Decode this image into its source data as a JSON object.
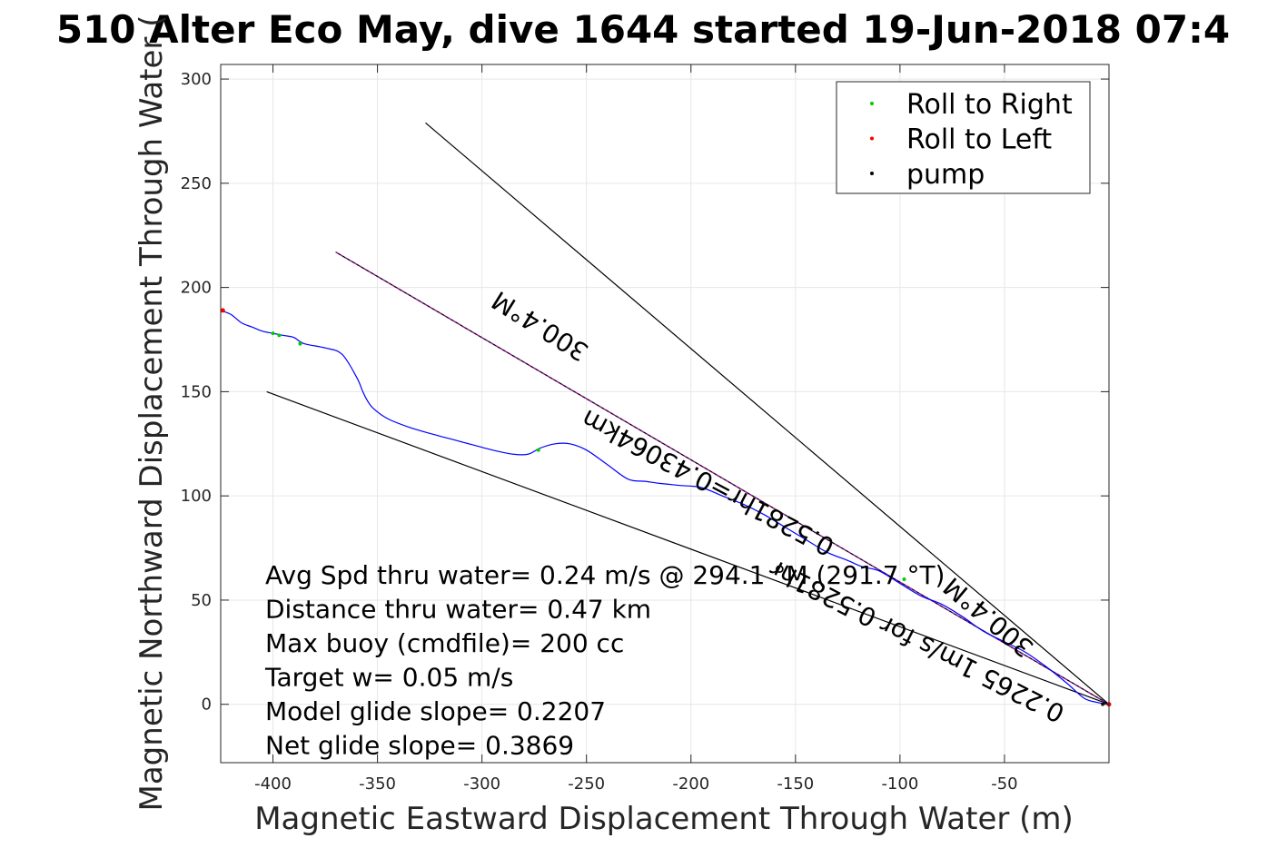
{
  "chart_data": {
    "type": "line",
    "title": "510 Alter Eco May, dive 1644 started 19-Jun-2018 07:4",
    "xlabel": "Magnetic Eastward Displacement Through Water (m)",
    "ylabel": "Magnetic Northward Displacement Through Water (",
    "xlim": [
      -425,
      0
    ],
    "ylim": [
      -28,
      307
    ],
    "x_ticks": [
      -400,
      -350,
      -300,
      -250,
      -200,
      -150,
      -100,
      -50
    ],
    "y_ticks": [
      0,
      50,
      100,
      150,
      200,
      250,
      300
    ],
    "grid": true,
    "legend": {
      "position": "top-right",
      "entries": [
        {
          "label": "Roll to Right",
          "color": "#00cc00"
        },
        {
          "label": "Roll to Left",
          "color": "#ff0000"
        },
        {
          "label": "pump",
          "color": "#000000"
        }
      ]
    },
    "colors": {
      "track": "#0000ff",
      "course": "#cc00cc",
      "guide": "#000000"
    },
    "track": {
      "x": [
        -425,
        -420,
        -415,
        -410,
        -405,
        -400,
        -395,
        -390,
        -385,
        -375,
        -367,
        -360,
        -357,
        -355,
        -352,
        -345,
        -335,
        -325,
        -310,
        -295,
        -285,
        -278,
        -272,
        -265,
        -258,
        -250,
        -240,
        -230,
        -222,
        -215,
        -205,
        -195,
        -185,
        -175,
        -165,
        -155,
        -145,
        -135,
        -125,
        -118,
        -110,
        -100,
        -90,
        -80,
        -70,
        -60,
        -50,
        -40,
        -30,
        -20,
        -12,
        -6,
        0
      ],
      "y": [
        189,
        187,
        183,
        181,
        179,
        178,
        177,
        176,
        173,
        171,
        168,
        157,
        150,
        146,
        142,
        137,
        133,
        130,
        126,
        122,
        120,
        120,
        123,
        125,
        125,
        122,
        115,
        108,
        107,
        106,
        105,
        104,
        100,
        96,
        91,
        85,
        79,
        73,
        69,
        66,
        64,
        58,
        52,
        48,
        42,
        35,
        30,
        25,
        18,
        10,
        3,
        1,
        0
      ]
    },
    "roll_to_right_points": [
      {
        "x": -400,
        "y": 178
      },
      {
        "x": -397,
        "y": 177
      },
      {
        "x": -387,
        "y": 173
      },
      {
        "x": -273,
        "y": 122
      },
      {
        "x": -98,
        "y": 60
      }
    ],
    "roll_to_left_points": [
      {
        "x": -424,
        "y": 189
      },
      {
        "x": 0,
        "y": 0
      }
    ],
    "pump_points": [
      {
        "x": -3,
        "y": 0
      }
    ],
    "lines": [
      {
        "name": "course",
        "x": [
          -370,
          0
        ],
        "y": [
          217,
          0
        ]
      },
      {
        "name": "guide-upper",
        "x": [
          -327,
          0
        ],
        "y": [
          279,
          0
        ]
      },
      {
        "name": "guide-lower",
        "x": [
          -403,
          0
        ],
        "y": [
          150,
          0
        ]
      }
    ],
    "line_labels": [
      {
        "text": "300.4°M",
        "x": -270,
        "y": 185,
        "angle": 212
      },
      {
        "text": "0.5281hr=0.43064km",
        "x": -190,
        "y": 110,
        "angle": 208
      },
      {
        "text": "300.4°M",
        "x": -55,
        "y": 45,
        "angle": 220
      },
      {
        "text": "0.2265 1m/s for 0.5281hr",
        "x": -90,
        "y": 34,
        "angle": 207
      }
    ],
    "annotations": [
      "Avg Spd thru water=  0.24 m/s @ 294.1 °M (291.7 °T)",
      "Distance thru water=  0.47 km",
      "Max buoy (cmdfile)= 200 cc",
      "Target w= 0.05 m/s",
      "Model glide slope= 0.2207",
      "Net glide slope= 0.3869"
    ]
  }
}
